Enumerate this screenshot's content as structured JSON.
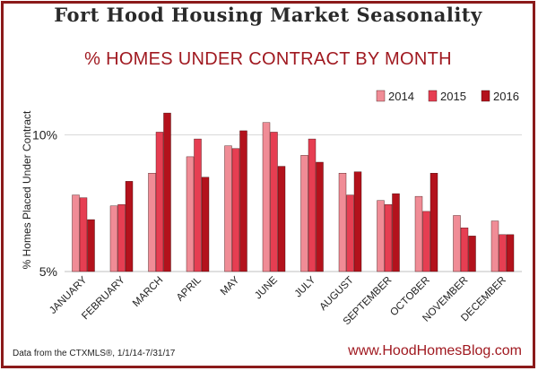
{
  "title": "Fort Hood Housing Market Seasonality",
  "subtitle": "% HOMES UNDER CONTRACT BY MONTH",
  "footer": {
    "source": "Data from the CTXMLS®, 1/1/14-7/31/17",
    "website": "www.HoodHomesBlog.com"
  },
  "colors": {
    "frame": "#8b1a1a",
    "s2014": "#f08c96",
    "s2015": "#e63e52",
    "s2016": "#b3121c"
  },
  "chart_data": {
    "type": "bar",
    "title": "% HOMES UNDER CONTRACT BY MONTH",
    "ylabel": "% Homes Placed Under Contract",
    "xlabel": "",
    "ylim": [
      5,
      11
    ],
    "yticks": [
      {
        "value": 5,
        "label": "5%"
      },
      {
        "value": 10,
        "label": "10%"
      }
    ],
    "grid": true,
    "legend_position": "top-right",
    "categories": [
      "JANUARY",
      "FEBRUARY",
      "MARCH",
      "APRIL",
      "MAY",
      "JUNE",
      "JULY",
      "AUGUST",
      "SEPTEMBER",
      "OCTOBER",
      "NOVEMBER",
      "DECEMBER"
    ],
    "series": [
      {
        "name": "2014",
        "color": "#f08c96",
        "values": [
          7.8,
          7.4,
          8.6,
          9.2,
          9.6,
          10.45,
          9.25,
          8.6,
          7.6,
          7.75,
          7.05,
          6.85
        ]
      },
      {
        "name": "2015",
        "color": "#e63e52",
        "values": [
          7.7,
          7.45,
          10.1,
          9.85,
          9.5,
          10.1,
          9.85,
          7.8,
          7.45,
          7.2,
          6.6,
          6.35
        ]
      },
      {
        "name": "2016",
        "color": "#b3121c",
        "values": [
          6.9,
          8.3,
          10.8,
          8.45,
          10.15,
          8.85,
          9.0,
          8.65,
          7.85,
          8.6,
          6.3,
          6.35
        ]
      }
    ]
  }
}
